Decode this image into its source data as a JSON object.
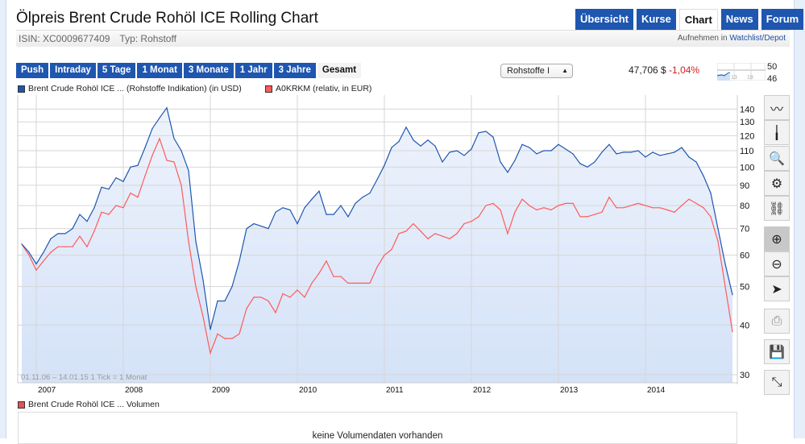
{
  "header": {
    "title": "Ölpreis Brent Crude Rohöl ICE Rolling Chart",
    "isin": "ISIN: XC0009677409",
    "typ": "Typ: Rohstoff",
    "watch_prefix": "Aufnehmen in",
    "watch_link": "Watchlist/Depot"
  },
  "tabs": [
    {
      "label": "Übersicht"
    },
    {
      "label": "Kurse"
    },
    {
      "label": "Chart",
      "active": true
    },
    {
      "label": "News"
    },
    {
      "label": "Forum"
    }
  ],
  "periods": [
    {
      "label": "Push"
    },
    {
      "label": "Intraday"
    },
    {
      "label": "5 Tage"
    },
    {
      "label": "1 Monat"
    },
    {
      "label": "3 Monate"
    },
    {
      "label": "1 Jahr"
    },
    {
      "label": "3 Jahre"
    },
    {
      "label": "Gesamt",
      "active": true
    }
  ],
  "select": {
    "value": "Rohstoffe I"
  },
  "quote": {
    "price": "47,706 $",
    "change": "-1,04%"
  },
  "spark": {
    "x_labels": [
      "13",
      "18"
    ],
    "y_labels": [
      "50",
      "46"
    ]
  },
  "toolbar": [
    "line-chart-icon",
    "bar-chart-icon",
    "chart-zoom-icon",
    "settings-gears-icon",
    "link-icon",
    "zoom-in-icon",
    "zoom-out-icon",
    "pointer-icon",
    "print-icon",
    "save-icon",
    "collapse-icon"
  ],
  "volume": {
    "legend": "Brent Crude Rohöl ICE ... Volumen",
    "message": "keine Volumendaten vorhanden",
    "color": "#e05555"
  },
  "chart_data": {
    "type": "area",
    "range_label": "01.11.06 – 14.01.15  1 Tick = 1 Monat",
    "x_start": "2006-11",
    "x_step": "1 month",
    "x_ticks": [
      "2007",
      "2008",
      "2009",
      "2010",
      "2011",
      "2012",
      "2013",
      "2014"
    ],
    "y_scale": "log",
    "ylim": [
      28,
      150
    ],
    "y_ticks": [
      30,
      40,
      50,
      60,
      70,
      80,
      90,
      100,
      110,
      120,
      130,
      140
    ],
    "grid": true,
    "legend": "top-left",
    "series": [
      {
        "name": "Brent Crude Rohöl ICE ... (Rohstoffe Indikation) (in USD)",
        "color": "#1e56b0",
        "values": [
          64,
          61,
          57,
          61,
          66,
          68,
          68,
          70,
          76,
          73,
          79,
          89,
          88,
          94,
          92,
          100,
          101,
          112,
          125,
          133,
          141,
          118,
          110,
          98,
          65,
          52,
          39,
          46,
          46,
          50,
          58,
          70,
          72,
          71,
          70,
          77,
          79,
          78,
          72,
          79,
          83,
          87,
          76,
          76,
          80,
          75,
          81,
          84,
          86,
          93,
          101,
          112,
          116,
          126,
          117,
          113,
          117,
          113,
          103,
          109,
          110,
          107,
          111,
          122,
          123,
          119,
          103,
          97,
          104,
          114,
          112,
          108,
          110,
          110,
          114,
          111,
          108,
          102,
          100,
          103,
          109,
          114,
          108,
          109,
          109,
          110,
          106,
          109,
          107,
          108,
          109,
          112,
          106,
          103,
          95,
          86,
          70,
          57,
          47.7
        ]
      },
      {
        "name": "A0KRKM (relativ, in EUR)",
        "color": "#ff5a5a",
        "values": [
          64,
          60,
          55,
          58,
          61,
          63,
          63,
          63,
          67,
          63,
          69,
          77,
          76,
          80,
          79,
          86,
          84,
          95,
          107,
          118,
          104,
          103,
          90,
          65,
          50,
          42,
          34,
          38,
          37,
          37,
          38,
          44,
          47,
          47,
          46,
          43,
          48,
          47,
          49,
          47,
          51,
          54,
          58,
          53,
          53,
          51,
          51,
          51,
          51,
          56,
          60,
          62,
          68,
          69,
          72,
          69,
          66,
          68,
          67,
          66,
          68,
          72,
          73,
          75,
          80,
          81,
          78,
          68,
          77,
          83,
          80,
          78,
          79,
          78,
          80,
          81,
          81,
          75,
          75,
          76,
          77,
          84,
          79,
          79,
          80,
          81,
          80,
          79,
          79,
          78,
          77,
          80,
          83,
          81,
          79,
          75,
          65,
          50,
          38.5
        ]
      }
    ]
  }
}
